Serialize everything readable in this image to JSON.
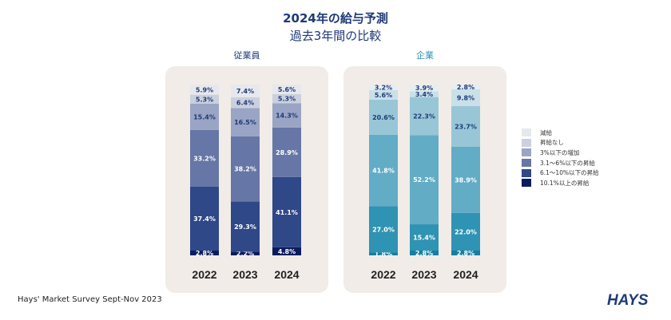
{
  "title": "2024年の給与予測",
  "subtitle": "過去3年間の比較",
  "source": "Hays' Market Survey Sept-Nov 2023",
  "logo_text": "HAYS",
  "legend": [
    {
      "label": "減給",
      "color": "#e6e8ed"
    },
    {
      "label": "昇給なし",
      "color": "#cad0dd"
    },
    {
      "label": "3%以下の増加",
      "color": "#9aa4c4"
    },
    {
      "label": "3.1〜6%以下の昇給",
      "color": "#6676a6"
    },
    {
      "label": "6.1〜10%以下の昇給",
      "color": "#2f4887"
    },
    {
      "label": "10.1%以上の昇給",
      "color": "#0b1c5e"
    }
  ],
  "chart_data": [
    {
      "type": "bar",
      "stacked": true,
      "title": "従業員",
      "categories": [
        "2022",
        "2023",
        "2024"
      ],
      "series": [
        {
          "name": "減給",
          "values": [
            5.9,
            7.4,
            5.6
          ],
          "labels": [
            "5.9%",
            "7.4%",
            "5.6%"
          ],
          "color": "#e6e8ed"
        },
        {
          "name": "昇給なし",
          "values": [
            5.3,
            6.4,
            5.3
          ],
          "labels": [
            "5.3%",
            "6.4%",
            "5.3%"
          ],
          "color": "#cad0dd"
        },
        {
          "name": "3%以下の増加",
          "values": [
            15.4,
            16.5,
            14.3
          ],
          "labels": [
            "15.4%",
            "16.5%",
            "14.3%"
          ],
          "color": "#9aa4c4"
        },
        {
          "name": "3.1〜6%以下の昇給",
          "values": [
            33.2,
            38.2,
            28.9
          ],
          "labels": [
            "33.2%",
            "38.2%",
            "28.9%"
          ],
          "color": "#6676a6"
        },
        {
          "name": "6.1〜10%以下の昇給",
          "values": [
            37.4,
            29.3,
            41.1
          ],
          "labels": [
            "37.4%",
            "29.3%",
            "41.1%"
          ],
          "color": "#2f4887"
        },
        {
          "name": "10.1%以上の昇給",
          "values": [
            2.8,
            2.2,
            4.8
          ],
          "labels": [
            "2.8%",
            "2.2%",
            "4.8%"
          ],
          "color": "#0b1c5e"
        }
      ],
      "ylim": [
        0,
        100
      ]
    },
    {
      "type": "bar",
      "stacked": true,
      "title": "企業",
      "categories": [
        "2022",
        "2023",
        "2024"
      ],
      "series": [
        {
          "name": "減給",
          "values": [
            3.2,
            3.9,
            2.8
          ],
          "labels": [
            "3.2%",
            "3.9%",
            "2.8%"
          ],
          "color": "#e5eef2"
        },
        {
          "name": "昇給なし",
          "values": [
            5.6,
            3.4,
            9.8
          ],
          "labels": [
            "5.6%",
            "3.4%",
            "9.8%"
          ],
          "color": "#c9e0e9"
        },
        {
          "name": "3%以下の増加",
          "values": [
            20.6,
            22.3,
            23.7
          ],
          "labels": [
            "20.6%",
            "22.3%",
            "23.7%"
          ],
          "color": "#98c6d6"
        },
        {
          "name": "3.1〜6%以下の昇給",
          "values": [
            41.8,
            52.2,
            38.9
          ],
          "labels": [
            "41.8%",
            "52.2%",
            "38.9%"
          ],
          "color": "#62acc6"
        },
        {
          "name": "6.1〜10%以下の昇給",
          "values": [
            27.0,
            15.4,
            22.0
          ],
          "labels": [
            "27.0%",
            "15.4%",
            "22.0%"
          ],
          "color": "#2f93b3"
        },
        {
          "name": "10.1%以上の昇給",
          "values": [
            1.8,
            2.8,
            2.8
          ],
          "labels": [
            "1.8%",
            "2.8%",
            "2.8%"
          ],
          "color": "#137fa1"
        }
      ],
      "ylim": [
        0,
        100
      ]
    }
  ]
}
